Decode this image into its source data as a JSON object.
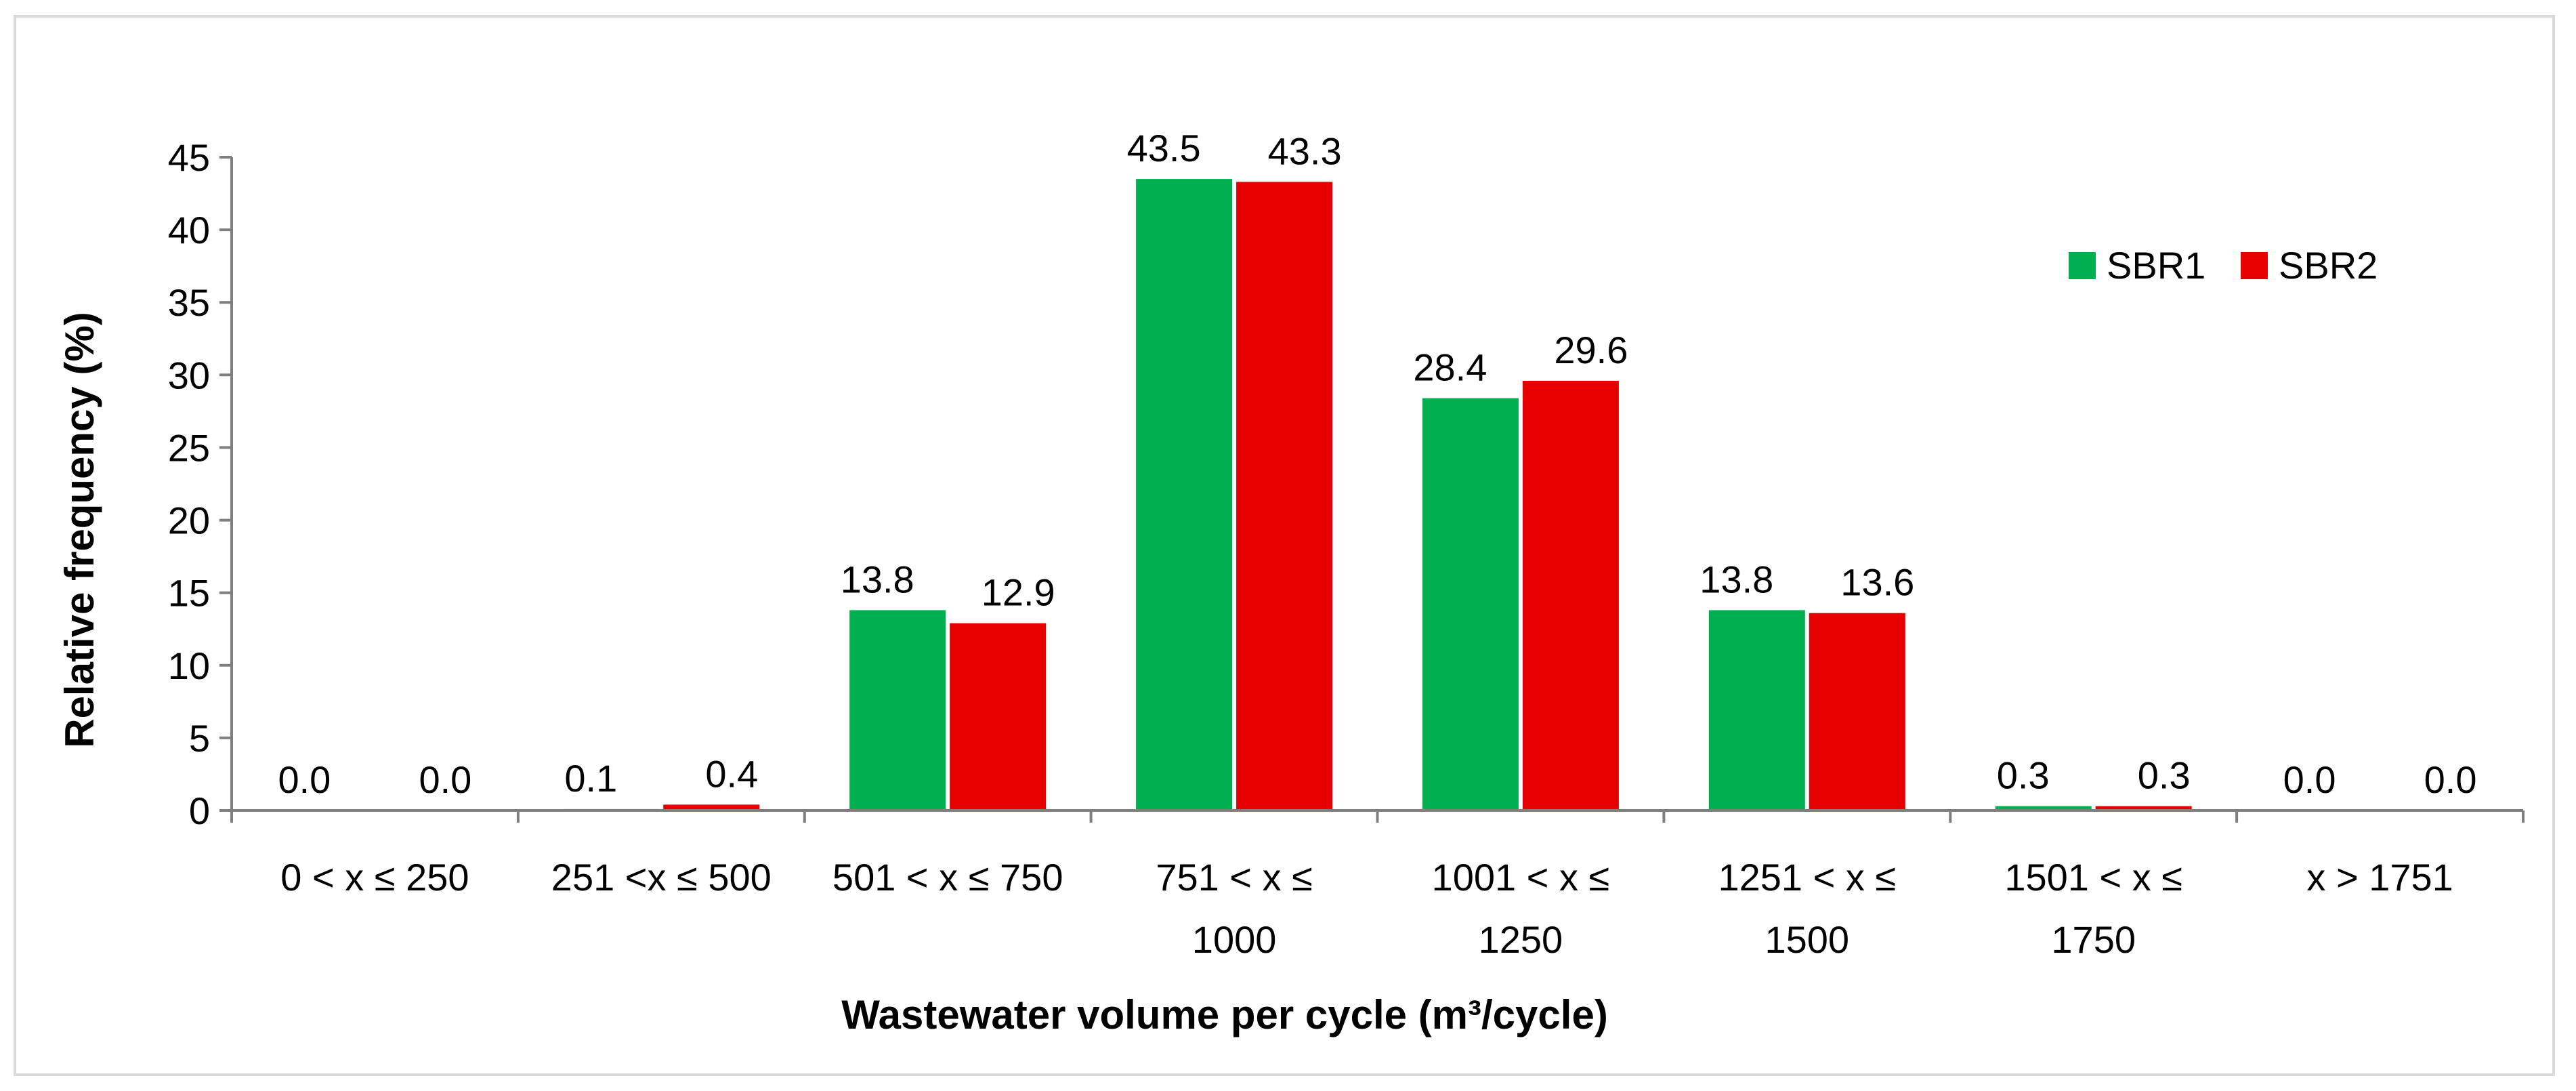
{
  "chart_data": {
    "type": "bar",
    "title": "",
    "xlabel": "Wastewater volume per cycle (m³/cycle)",
    "ylabel": "Relative frequency (%)",
    "ylim": [
      0,
      45
    ],
    "yticks": [
      0,
      5,
      10,
      15,
      20,
      25,
      30,
      35,
      40,
      45
    ],
    "grid": false,
    "legend_position": "top-right",
    "categories": [
      [
        "0 < x ≤ 250"
      ],
      [
        "251 <x ≤ 500"
      ],
      [
        "501 < x ≤ 750"
      ],
      [
        "751 < x ≤",
        "1000"
      ],
      [
        "1001 < x ≤",
        "1250"
      ],
      [
        "1251 < x ≤",
        "1500"
      ],
      [
        "1501 < x ≤",
        "1750"
      ],
      [
        "x > 1751"
      ]
    ],
    "series": [
      {
        "name": "SBR1",
        "color": "#00b050",
        "values": [
          0.0,
          0.1,
          13.8,
          43.5,
          28.4,
          13.8,
          0.3,
          0.0
        ],
        "labels": [
          "0.0",
          "0.1",
          "13.8",
          "43.5",
          "28.4",
          "13.8",
          "0.3",
          "0.0"
        ]
      },
      {
        "name": "SBR2",
        "color": "#e60000",
        "values": [
          0.0,
          0.4,
          12.9,
          43.3,
          29.6,
          13.6,
          0.3,
          0.0
        ],
        "labels": [
          "0.0",
          "0.4",
          "12.9",
          "43.3",
          "29.6",
          "13.6",
          "0.3",
          "0.0"
        ]
      }
    ]
  }
}
